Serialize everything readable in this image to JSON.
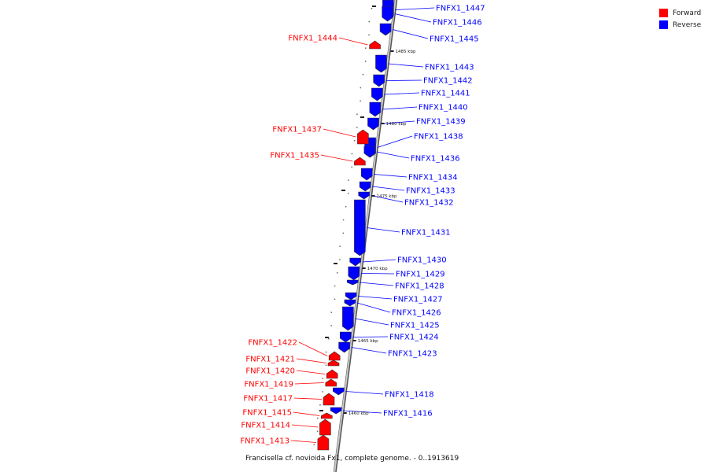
{
  "title": "Francisella cf. novicida Fx1, complete genome. - 0..1913619",
  "legend": [
    {
      "label": "Forward",
      "color": "#ff0000"
    },
    {
      "label": "Reverse",
      "color": "#0000ff"
    }
  ],
  "colors": {
    "forward": "#ff0000",
    "reverse": "#0000ff",
    "backbone": "#808080"
  },
  "scale_labels": [
    "1485 kbp",
    "1480 kbp",
    "1475 kbp",
    "1470 kbp",
    "1465 kbp",
    "1460 kbp"
  ],
  "reverse_genes": [
    "FNFX1_1447",
    "FNFX1_1446",
    "FNFX1_1445",
    "FNFX1_1443",
    "FNFX1_1442",
    "FNFX1_1441",
    "FNFX1_1440",
    "FNFX1_1439",
    "FNFX1_1438",
    "FNFX1_1436",
    "FNFX1_1434",
    "FNFX1_1433",
    "FNFX1_1432",
    "FNFX1_1431",
    "FNFX1_1430",
    "FNFX1_1429",
    "FNFX1_1428",
    "FNFX1_1427",
    "FNFX1_1426",
    "FNFX1_1425",
    "FNFX1_1424",
    "FNFX1_1423",
    "FNFX1_1418",
    "FNFX1_1416"
  ],
  "forward_genes": [
    "FNFX1_1444",
    "FNFX1_1437",
    "FNFX1_1435",
    "FNFX1_1422",
    "FNFX1_1421",
    "FNFX1_1420",
    "FNFX1_1419",
    "FNFX1_1417",
    "FNFX1_1415",
    "FNFX1_1414",
    "FNFX1_1413"
  ]
}
